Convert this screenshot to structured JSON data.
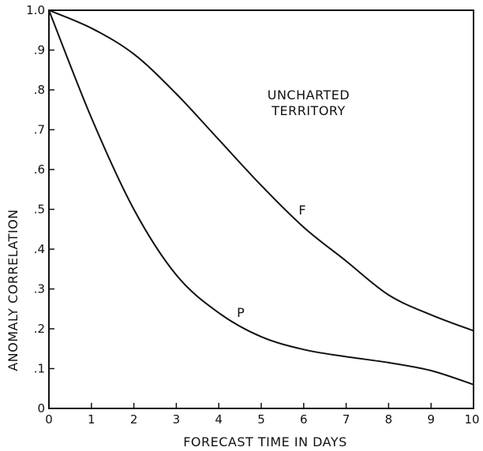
{
  "chart_data": {
    "type": "line",
    "title": "",
    "xlabel": "FORECAST TIME IN DAYS",
    "ylabel": "ANOMALY CORRELATION",
    "xlim": [
      0,
      10
    ],
    "ylim": [
      0,
      1.0
    ],
    "x_ticks": [
      "0",
      "1",
      "2",
      "3",
      "4",
      "5",
      "6",
      "7",
      "8",
      "9",
      "10"
    ],
    "y_ticks": [
      "0",
      ".1",
      ".2",
      ".3",
      ".4",
      ".5",
      ".6",
      ".7",
      ".8",
      ".9",
      "1.0"
    ],
    "grid": false,
    "line_color": "#111111",
    "annotations": {
      "region_line1": "UNCHARTED",
      "region_line2": "TERRITORY"
    },
    "series": [
      {
        "name": "F",
        "x": [
          0,
          1,
          2,
          3,
          4,
          5,
          6,
          7,
          8,
          9,
          10
        ],
        "values": [
          1.0,
          0.955,
          0.89,
          0.79,
          0.675,
          0.56,
          0.455,
          0.37,
          0.285,
          0.235,
          0.195
        ]
      },
      {
        "name": "P",
        "x": [
          0,
          1,
          2,
          3,
          4,
          5,
          6,
          7,
          8,
          9,
          10
        ],
        "values": [
          1.0,
          0.73,
          0.5,
          0.335,
          0.24,
          0.18,
          0.148,
          0.13,
          0.115,
          0.095,
          0.06
        ]
      }
    ]
  }
}
